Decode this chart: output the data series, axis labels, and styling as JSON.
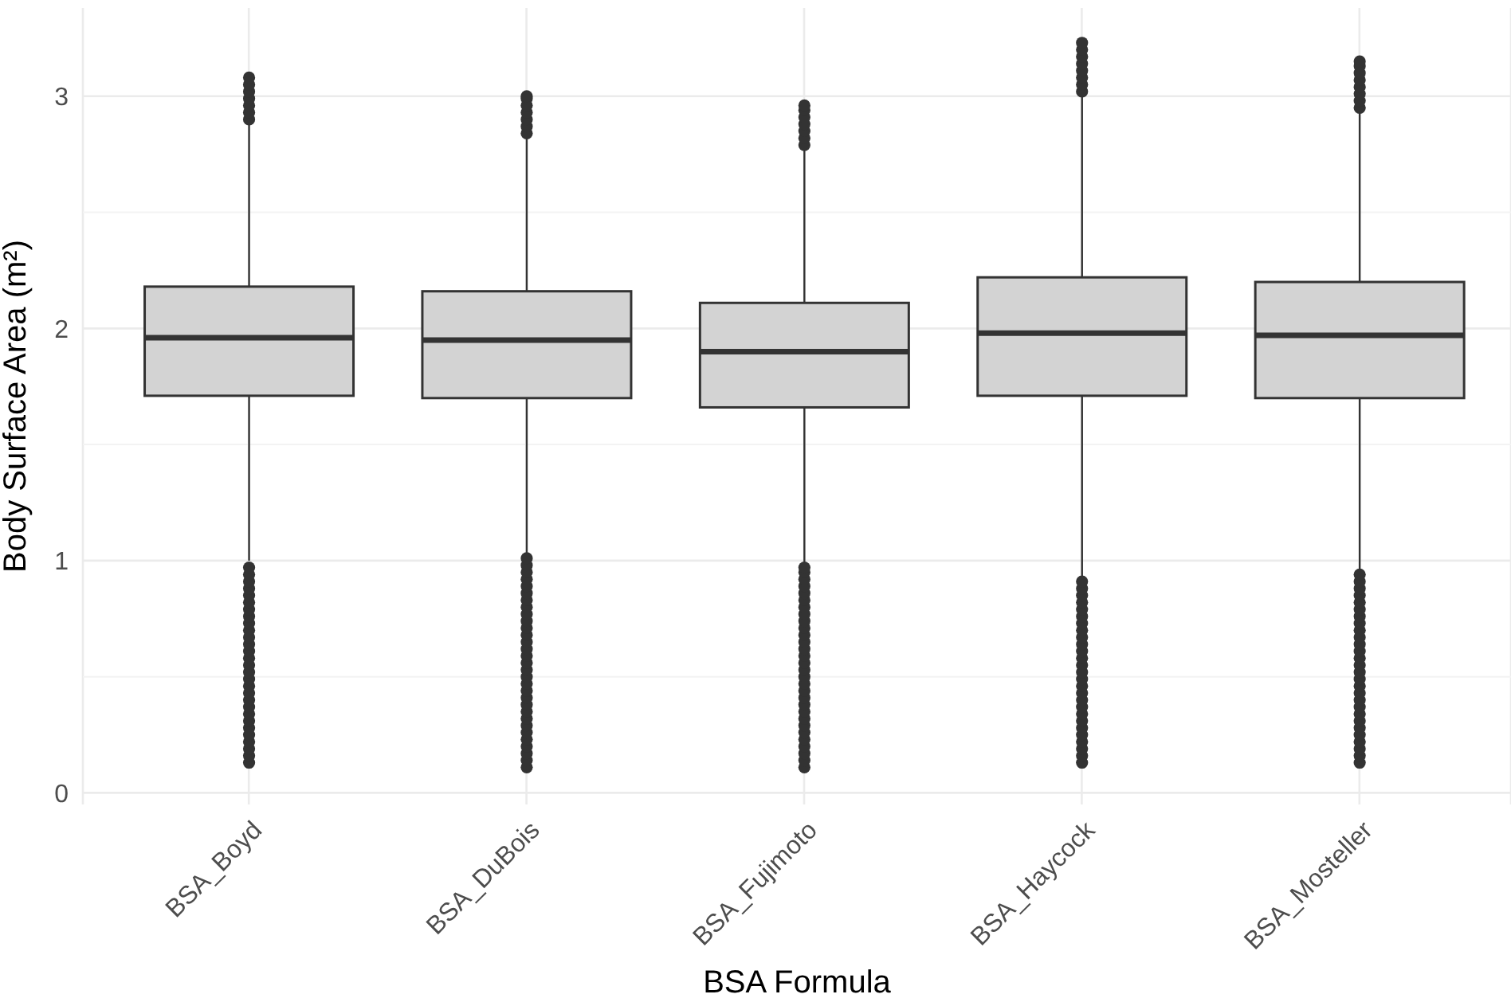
{
  "chart_data": {
    "type": "box",
    "xlabel": "BSA Formula",
    "ylabel": "Body Surface Area (m²)",
    "categories": [
      "BSA_Boyd",
      "BSA_DuBois",
      "BSA_Fujimoto",
      "BSA_Haycock",
      "BSA_Mosteller"
    ],
    "color": "#d3d3d3",
    "boxes": [
      {
        "low": 1.0,
        "q1": 1.71,
        "median": 1.96,
        "q3": 2.18,
        "high": 2.88,
        "outliers": [
          0.13,
          0.16,
          0.19,
          0.22,
          0.25,
          0.28,
          0.31,
          0.34,
          0.37,
          0.4,
          0.43,
          0.46,
          0.49,
          0.52,
          0.55,
          0.58,
          0.61,
          0.64,
          0.67,
          0.7,
          0.73,
          0.76,
          0.79,
          0.82,
          0.85,
          0.88,
          0.91,
          0.94,
          0.97,
          2.9,
          2.93,
          2.96,
          2.99,
          3.02,
          3.05,
          3.08
        ]
      },
      {
        "low": 1.03,
        "q1": 1.7,
        "median": 1.95,
        "q3": 2.16,
        "high": 2.83,
        "outliers": [
          0.11,
          0.14,
          0.17,
          0.2,
          0.23,
          0.26,
          0.29,
          0.32,
          0.35,
          0.38,
          0.41,
          0.44,
          0.47,
          0.5,
          0.53,
          0.56,
          0.59,
          0.62,
          0.65,
          0.68,
          0.71,
          0.74,
          0.77,
          0.8,
          0.83,
          0.86,
          0.89,
          0.92,
          0.95,
          0.98,
          1.01,
          2.84,
          2.87,
          2.9,
          2.93,
          2.96,
          2.99,
          3.0
        ]
      },
      {
        "low": 0.99,
        "q1": 1.66,
        "median": 1.9,
        "q3": 2.11,
        "high": 2.77,
        "outliers": [
          0.11,
          0.14,
          0.17,
          0.2,
          0.23,
          0.26,
          0.29,
          0.32,
          0.35,
          0.38,
          0.41,
          0.44,
          0.47,
          0.5,
          0.53,
          0.56,
          0.59,
          0.62,
          0.65,
          0.68,
          0.71,
          0.74,
          0.77,
          0.8,
          0.83,
          0.86,
          0.89,
          0.92,
          0.95,
          0.97,
          2.79,
          2.82,
          2.85,
          2.88,
          2.91,
          2.94,
          2.96
        ]
      },
      {
        "low": 0.93,
        "q1": 1.71,
        "median": 1.98,
        "q3": 2.22,
        "high": 3.0,
        "outliers": [
          0.13,
          0.16,
          0.19,
          0.22,
          0.25,
          0.28,
          0.31,
          0.34,
          0.37,
          0.4,
          0.43,
          0.46,
          0.49,
          0.52,
          0.55,
          0.58,
          0.61,
          0.64,
          0.67,
          0.7,
          0.73,
          0.76,
          0.79,
          0.82,
          0.85,
          0.88,
          0.91,
          3.02,
          3.05,
          3.08,
          3.11,
          3.14,
          3.17,
          3.2,
          3.23
        ]
      },
      {
        "low": 0.96,
        "q1": 1.7,
        "median": 1.97,
        "q3": 2.2,
        "high": 2.93,
        "outliers": [
          0.13,
          0.16,
          0.19,
          0.22,
          0.25,
          0.28,
          0.31,
          0.34,
          0.37,
          0.4,
          0.43,
          0.46,
          0.49,
          0.52,
          0.55,
          0.58,
          0.61,
          0.64,
          0.67,
          0.7,
          0.73,
          0.76,
          0.79,
          0.82,
          0.85,
          0.88,
          0.91,
          0.94,
          2.95,
          2.98,
          3.01,
          3.04,
          3.07,
          3.1,
          3.13,
          3.15
        ]
      }
    ],
    "ylim": [
      -0.05,
      3.38
    ],
    "yticks": [
      0,
      {
        "value": 0.5,
        "label": null
      },
      1,
      {
        "value": 1.5,
        "label": null
      },
      2,
      {
        "value": 2.5,
        "label": null
      },
      3
    ],
    "grid": true
  }
}
